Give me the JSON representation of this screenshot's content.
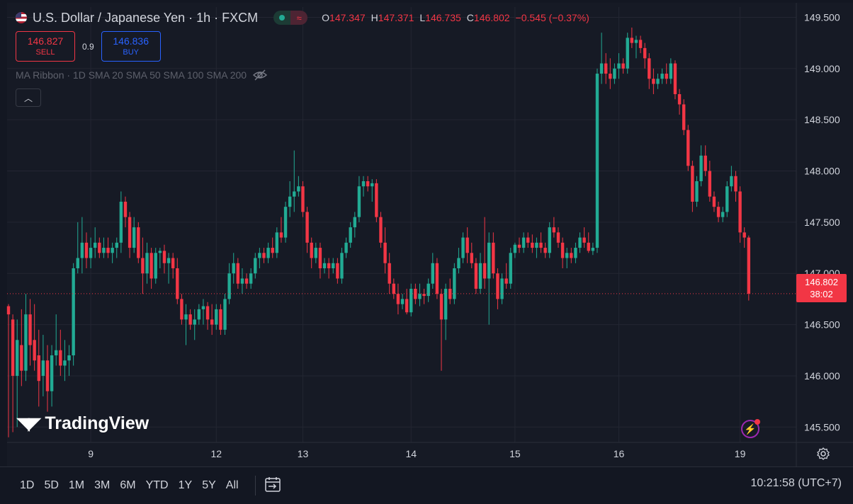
{
  "header": {
    "symbol_title": "U.S. Dollar / Japanese Yen · 1h · FXCM",
    "ohlc": [
      {
        "key": "O",
        "value": "147.347"
      },
      {
        "key": "H",
        "value": "147.371"
      },
      {
        "key": "L",
        "value": "146.735"
      },
      {
        "key": "C",
        "value": "146.802"
      },
      {
        "key": "",
        "value": "−0.545 (−0.37%)"
      }
    ]
  },
  "trade": {
    "sell_price": "146.827",
    "sell_label": "SELL",
    "spread": "0.9",
    "buy_price": "146.836",
    "buy_label": "BUY"
  },
  "indicator": {
    "label": "MA Ribbon · 1D SMA 20 SMA 50 SMA 100 SMA 200"
  },
  "last_price": {
    "price": "146.802",
    "countdown": "38:02"
  },
  "branding": {
    "logo": "TradingView"
  },
  "bottom_bar": {
    "ranges": [
      "1D",
      "5D",
      "1M",
      "3M",
      "6M",
      "YTD",
      "1Y",
      "5Y",
      "All"
    ],
    "clock": "10:21:58 (UTC+7)"
  },
  "colors": {
    "up": "#22ab94",
    "down": "#f23645",
    "background": "#161a25",
    "grid": "#232632",
    "text": "#d1d4dc"
  },
  "chart_data": {
    "type": "candlestick",
    "y_axis": {
      "min": 145.35,
      "max": 149.6,
      "ticks": [
        145.5,
        146.0,
        146.5,
        147.0,
        147.5,
        148.0,
        148.5,
        149.0,
        149.5
      ],
      "tick_labels": [
        "145.500",
        "146.000",
        "146.500",
        "147.000",
        "147.500",
        "148.000",
        "148.500",
        "149.000",
        "149.500"
      ]
    },
    "x_axis": {
      "labels": [
        "9",
        "12",
        "13",
        "14",
        "15",
        "16",
        "19"
      ],
      "label_bar_index": [
        19,
        48,
        68,
        93,
        117,
        141,
        169
      ]
    },
    "grid": true,
    "last_close": 146.802,
    "candles": [
      {
        "o": 146.68,
        "h": 146.7,
        "l": 145.4,
        "c": 146.6
      },
      {
        "o": 146.55,
        "h": 146.6,
        "l": 145.45,
        "c": 146.0
      },
      {
        "o": 146.0,
        "h": 146.55,
        "l": 145.5,
        "c": 146.35
      },
      {
        "o": 146.3,
        "h": 146.65,
        "l": 145.9,
        "c": 146.05
      },
      {
        "o": 146.05,
        "h": 146.8,
        "l": 145.95,
        "c": 146.6
      },
      {
        "o": 146.6,
        "h": 146.75,
        "l": 146.1,
        "c": 146.3
      },
      {
        "o": 146.35,
        "h": 146.7,
        "l": 146.05,
        "c": 146.15
      },
      {
        "o": 146.2,
        "h": 146.45,
        "l": 145.7,
        "c": 145.95
      },
      {
        "o": 146.0,
        "h": 146.4,
        "l": 145.8,
        "c": 146.15
      },
      {
        "o": 146.15,
        "h": 146.3,
        "l": 145.65,
        "c": 145.85
      },
      {
        "o": 145.85,
        "h": 146.3,
        "l": 145.7,
        "c": 146.2
      },
      {
        "o": 146.2,
        "h": 146.6,
        "l": 146.1,
        "c": 146.25
      },
      {
        "o": 146.25,
        "h": 146.45,
        "l": 146.0,
        "c": 146.1
      },
      {
        "o": 146.1,
        "h": 146.35,
        "l": 145.95,
        "c": 146.15
      },
      {
        "o": 146.15,
        "h": 146.3,
        "l": 146.0,
        "c": 146.2
      },
      {
        "o": 146.2,
        "h": 147.1,
        "l": 146.1,
        "c": 147.05
      },
      {
        "o": 147.05,
        "h": 147.5,
        "l": 147.0,
        "c": 147.15
      },
      {
        "o": 147.15,
        "h": 147.55,
        "l": 147.0,
        "c": 147.3
      },
      {
        "o": 147.3,
        "h": 147.4,
        "l": 147.05,
        "c": 147.15
      },
      {
        "o": 147.15,
        "h": 147.35,
        "l": 147.05,
        "c": 147.25
      },
      {
        "o": 147.25,
        "h": 147.45,
        "l": 147.15,
        "c": 147.3
      },
      {
        "o": 147.3,
        "h": 147.35,
        "l": 147.15,
        "c": 147.2
      },
      {
        "o": 147.2,
        "h": 147.35,
        "l": 147.15,
        "c": 147.25
      },
      {
        "o": 147.25,
        "h": 147.35,
        "l": 147.15,
        "c": 147.2
      },
      {
        "o": 147.2,
        "h": 147.3,
        "l": 147.1,
        "c": 147.25
      },
      {
        "o": 147.25,
        "h": 147.35,
        "l": 147.15,
        "c": 147.3
      },
      {
        "o": 147.3,
        "h": 147.8,
        "l": 147.2,
        "c": 147.7
      },
      {
        "o": 147.7,
        "h": 147.75,
        "l": 147.45,
        "c": 147.55
      },
      {
        "o": 147.55,
        "h": 147.6,
        "l": 147.15,
        "c": 147.25
      },
      {
        "o": 147.25,
        "h": 147.55,
        "l": 147.2,
        "c": 147.45
      },
      {
        "o": 147.45,
        "h": 147.5,
        "l": 147.1,
        "c": 147.15
      },
      {
        "o": 147.15,
        "h": 147.35,
        "l": 146.8,
        "c": 147.0
      },
      {
        "o": 147.0,
        "h": 147.3,
        "l": 146.9,
        "c": 147.2
      },
      {
        "o": 147.2,
        "h": 147.25,
        "l": 146.85,
        "c": 146.95
      },
      {
        "o": 146.95,
        "h": 147.25,
        "l": 146.9,
        "c": 147.2
      },
      {
        "o": 147.2,
        "h": 147.25,
        "l": 147.05,
        "c": 147.22
      },
      {
        "o": 147.22,
        "h": 147.28,
        "l": 147.0,
        "c": 147.1
      },
      {
        "o": 147.1,
        "h": 147.2,
        "l": 146.9,
        "c": 147.15
      },
      {
        "o": 147.15,
        "h": 147.2,
        "l": 146.95,
        "c": 147.05
      },
      {
        "o": 147.05,
        "h": 147.15,
        "l": 146.7,
        "c": 146.75
      },
      {
        "o": 146.75,
        "h": 146.8,
        "l": 146.5,
        "c": 146.55
      },
      {
        "o": 146.55,
        "h": 146.7,
        "l": 146.3,
        "c": 146.6
      },
      {
        "o": 146.6,
        "h": 146.65,
        "l": 146.45,
        "c": 146.5
      },
      {
        "o": 146.5,
        "h": 146.65,
        "l": 146.35,
        "c": 146.55
      },
      {
        "o": 146.55,
        "h": 146.7,
        "l": 146.5,
        "c": 146.65
      },
      {
        "o": 146.65,
        "h": 146.75,
        "l": 146.5,
        "c": 146.68
      },
      {
        "o": 146.68,
        "h": 146.72,
        "l": 146.45,
        "c": 146.55
      },
      {
        "o": 146.55,
        "h": 146.7,
        "l": 146.4,
        "c": 146.5
      },
      {
        "o": 146.5,
        "h": 146.7,
        "l": 146.45,
        "c": 146.65
      },
      {
        "o": 146.65,
        "h": 146.7,
        "l": 146.4,
        "c": 146.45
      },
      {
        "o": 146.45,
        "h": 146.8,
        "l": 146.4,
        "c": 146.75
      },
      {
        "o": 146.75,
        "h": 147.1,
        "l": 146.7,
        "c": 147.0
      },
      {
        "o": 147.0,
        "h": 147.2,
        "l": 146.9,
        "c": 147.1
      },
      {
        "o": 147.1,
        "h": 147.15,
        "l": 146.85,
        "c": 146.9
      },
      {
        "o": 146.9,
        "h": 147.05,
        "l": 146.8,
        "c": 146.95
      },
      {
        "o": 146.95,
        "h": 147.0,
        "l": 146.85,
        "c": 146.9
      },
      {
        "o": 146.9,
        "h": 147.05,
        "l": 146.85,
        "c": 147.0
      },
      {
        "o": 147.0,
        "h": 147.2,
        "l": 146.95,
        "c": 147.15
      },
      {
        "o": 147.15,
        "h": 147.25,
        "l": 147.05,
        "c": 147.2
      },
      {
        "o": 147.2,
        "h": 147.25,
        "l": 147.1,
        "c": 147.15
      },
      {
        "o": 147.15,
        "h": 147.3,
        "l": 147.1,
        "c": 147.25
      },
      {
        "o": 147.25,
        "h": 147.35,
        "l": 147.15,
        "c": 147.2
      },
      {
        "o": 147.2,
        "h": 147.45,
        "l": 147.15,
        "c": 147.4
      },
      {
        "o": 147.4,
        "h": 147.55,
        "l": 147.3,
        "c": 147.35
      },
      {
        "o": 147.35,
        "h": 147.7,
        "l": 147.3,
        "c": 147.65
      },
      {
        "o": 147.65,
        "h": 147.9,
        "l": 147.55,
        "c": 147.75
      },
      {
        "o": 147.75,
        "h": 148.2,
        "l": 147.6,
        "c": 147.8
      },
      {
        "o": 147.8,
        "h": 147.95,
        "l": 147.75,
        "c": 147.85
      },
      {
        "o": 147.85,
        "h": 147.9,
        "l": 147.55,
        "c": 147.6
      },
      {
        "o": 147.6,
        "h": 147.65,
        "l": 147.2,
        "c": 147.3
      },
      {
        "o": 147.3,
        "h": 147.35,
        "l": 147.05,
        "c": 147.15
      },
      {
        "o": 147.15,
        "h": 147.3,
        "l": 147.1,
        "c": 147.25
      },
      {
        "o": 147.25,
        "h": 147.3,
        "l": 146.95,
        "c": 147.05
      },
      {
        "o": 147.05,
        "h": 147.15,
        "l": 147.0,
        "c": 147.1
      },
      {
        "o": 147.1,
        "h": 147.15,
        "l": 146.95,
        "c": 147.05
      },
      {
        "o": 147.05,
        "h": 147.15,
        "l": 147.0,
        "c": 147.1
      },
      {
        "o": 147.1,
        "h": 147.15,
        "l": 146.9,
        "c": 146.95
      },
      {
        "o": 146.95,
        "h": 147.25,
        "l": 146.9,
        "c": 147.2
      },
      {
        "o": 147.2,
        "h": 147.35,
        "l": 147.15,
        "c": 147.3
      },
      {
        "o": 147.3,
        "h": 147.5,
        "l": 147.25,
        "c": 147.45
      },
      {
        "o": 147.45,
        "h": 147.6,
        "l": 147.35,
        "c": 147.55
      },
      {
        "o": 147.55,
        "h": 147.95,
        "l": 147.5,
        "c": 147.85
      },
      {
        "o": 147.85,
        "h": 147.95,
        "l": 147.75,
        "c": 147.9
      },
      {
        "o": 147.9,
        "h": 147.95,
        "l": 147.8,
        "c": 147.85
      },
      {
        "o": 147.85,
        "h": 147.92,
        "l": 147.7,
        "c": 147.88
      },
      {
        "o": 147.88,
        "h": 147.92,
        "l": 147.5,
        "c": 147.55
      },
      {
        "o": 147.55,
        "h": 147.6,
        "l": 147.25,
        "c": 147.3
      },
      {
        "o": 147.3,
        "h": 147.45,
        "l": 147.0,
        "c": 147.1
      },
      {
        "o": 147.1,
        "h": 147.2,
        "l": 146.8,
        "c": 146.9
      },
      {
        "o": 146.9,
        "h": 146.95,
        "l": 146.75,
        "c": 146.8
      },
      {
        "o": 146.8,
        "h": 146.9,
        "l": 146.6,
        "c": 146.7
      },
      {
        "o": 146.7,
        "h": 146.8,
        "l": 146.65,
        "c": 146.75
      },
      {
        "o": 146.75,
        "h": 146.85,
        "l": 146.6,
        "c": 146.62
      },
      {
        "o": 146.62,
        "h": 146.9,
        "l": 146.58,
        "c": 146.85
      },
      {
        "o": 146.85,
        "h": 146.9,
        "l": 146.7,
        "c": 146.75
      },
      {
        "o": 146.75,
        "h": 146.9,
        "l": 146.68,
        "c": 146.8
      },
      {
        "o": 146.8,
        "h": 146.85,
        "l": 146.7,
        "c": 146.78
      },
      {
        "o": 146.78,
        "h": 146.95,
        "l": 146.72,
        "c": 146.9
      },
      {
        "o": 146.9,
        "h": 147.2,
        "l": 146.85,
        "c": 147.1
      },
      {
        "o": 147.1,
        "h": 147.15,
        "l": 146.75,
        "c": 146.8
      },
      {
        "o": 146.8,
        "h": 146.85,
        "l": 146.05,
        "c": 146.55
      },
      {
        "o": 146.55,
        "h": 146.9,
        "l": 146.35,
        "c": 146.85
      },
      {
        "o": 146.85,
        "h": 146.95,
        "l": 146.7,
        "c": 146.75
      },
      {
        "o": 146.75,
        "h": 147.1,
        "l": 146.7,
        "c": 147.05
      },
      {
        "o": 147.05,
        "h": 147.25,
        "l": 147.0,
        "c": 147.15
      },
      {
        "o": 147.15,
        "h": 147.4,
        "l": 147.1,
        "c": 147.35
      },
      {
        "o": 147.35,
        "h": 147.45,
        "l": 147.1,
        "c": 147.2
      },
      {
        "o": 147.2,
        "h": 147.3,
        "l": 147.05,
        "c": 147.1
      },
      {
        "o": 147.1,
        "h": 147.15,
        "l": 146.8,
        "c": 146.85
      },
      {
        "o": 146.85,
        "h": 147.2,
        "l": 146.8,
        "c": 147.1
      },
      {
        "o": 147.1,
        "h": 147.55,
        "l": 146.85,
        "c": 146.95
      },
      {
        "o": 146.95,
        "h": 147.4,
        "l": 146.5,
        "c": 147.3
      },
      {
        "o": 147.3,
        "h": 147.4,
        "l": 146.95,
        "c": 147.0
      },
      {
        "o": 147.0,
        "h": 147.05,
        "l": 146.65,
        "c": 146.75
      },
      {
        "o": 146.75,
        "h": 147.0,
        "l": 146.7,
        "c": 146.95
      },
      {
        "o": 146.95,
        "h": 147.1,
        "l": 146.85,
        "c": 146.9
      },
      {
        "o": 146.9,
        "h": 147.25,
        "l": 146.85,
        "c": 147.2
      },
      {
        "o": 147.2,
        "h": 147.3,
        "l": 147.15,
        "c": 147.28
      },
      {
        "o": 147.28,
        "h": 147.35,
        "l": 147.2,
        "c": 147.25
      },
      {
        "o": 147.25,
        "h": 147.4,
        "l": 147.2,
        "c": 147.35
      },
      {
        "o": 147.35,
        "h": 147.4,
        "l": 147.25,
        "c": 147.3
      },
      {
        "o": 147.3,
        "h": 147.38,
        "l": 147.2,
        "c": 147.25
      },
      {
        "o": 147.25,
        "h": 147.35,
        "l": 147.15,
        "c": 147.3
      },
      {
        "o": 147.3,
        "h": 147.4,
        "l": 147.2,
        "c": 147.25
      },
      {
        "o": 147.25,
        "h": 147.3,
        "l": 147.15,
        "c": 147.2
      },
      {
        "o": 147.2,
        "h": 147.5,
        "l": 147.15,
        "c": 147.45
      },
      {
        "o": 147.45,
        "h": 147.55,
        "l": 147.35,
        "c": 147.4
      },
      {
        "o": 147.4,
        "h": 147.45,
        "l": 147.25,
        "c": 147.3
      },
      {
        "o": 147.3,
        "h": 147.35,
        "l": 147.05,
        "c": 147.15
      },
      {
        "o": 147.15,
        "h": 147.25,
        "l": 147.05,
        "c": 147.2
      },
      {
        "o": 147.2,
        "h": 147.25,
        "l": 147.1,
        "c": 147.15
      },
      {
        "o": 147.15,
        "h": 147.3,
        "l": 147.1,
        "c": 147.25
      },
      {
        "o": 147.25,
        "h": 147.4,
        "l": 147.2,
        "c": 147.35
      },
      {
        "o": 147.35,
        "h": 147.45,
        "l": 147.25,
        "c": 147.3
      },
      {
        "o": 147.3,
        "h": 147.4,
        "l": 147.2,
        "c": 147.22
      },
      {
        "o": 147.22,
        "h": 147.3,
        "l": 147.18,
        "c": 147.25
      },
      {
        "o": 147.25,
        "h": 149.0,
        "l": 147.2,
        "c": 148.95
      },
      {
        "o": 148.95,
        "h": 149.35,
        "l": 148.85,
        "c": 149.05
      },
      {
        "o": 149.05,
        "h": 149.15,
        "l": 148.85,
        "c": 148.95
      },
      {
        "o": 148.95,
        "h": 149.1,
        "l": 148.8,
        "c": 148.9
      },
      {
        "o": 148.9,
        "h": 149.05,
        "l": 148.85,
        "c": 149.0
      },
      {
        "o": 149.0,
        "h": 149.15,
        "l": 148.9,
        "c": 149.05
      },
      {
        "o": 149.05,
        "h": 149.1,
        "l": 148.95,
        "c": 149.0
      },
      {
        "o": 149.0,
        "h": 149.35,
        "l": 148.95,
        "c": 149.3
      },
      {
        "o": 149.3,
        "h": 149.4,
        "l": 149.2,
        "c": 149.25
      },
      {
        "o": 149.25,
        "h": 149.32,
        "l": 149.1,
        "c": 149.28
      },
      {
        "o": 149.28,
        "h": 149.32,
        "l": 149.15,
        "c": 149.2
      },
      {
        "o": 149.2,
        "h": 149.25,
        "l": 149.0,
        "c": 149.1
      },
      {
        "o": 149.1,
        "h": 149.15,
        "l": 148.8,
        "c": 148.9
      },
      {
        "o": 148.9,
        "h": 149.0,
        "l": 148.75,
        "c": 148.85
      },
      {
        "o": 148.85,
        "h": 148.95,
        "l": 148.8,
        "c": 148.9
      },
      {
        "o": 148.9,
        "h": 149.0,
        "l": 148.85,
        "c": 148.95
      },
      {
        "o": 148.95,
        "h": 149.05,
        "l": 148.85,
        "c": 148.9
      },
      {
        "o": 148.9,
        "h": 149.1,
        "l": 148.85,
        "c": 149.05
      },
      {
        "o": 149.05,
        "h": 149.08,
        "l": 148.7,
        "c": 148.75
      },
      {
        "o": 148.75,
        "h": 148.8,
        "l": 148.55,
        "c": 148.65
      },
      {
        "o": 148.65,
        "h": 148.7,
        "l": 148.35,
        "c": 148.4
      },
      {
        "o": 148.4,
        "h": 148.45,
        "l": 148.0,
        "c": 148.05
      },
      {
        "o": 148.05,
        "h": 148.1,
        "l": 147.6,
        "c": 147.7
      },
      {
        "o": 147.7,
        "h": 147.95,
        "l": 147.65,
        "c": 147.9
      },
      {
        "o": 147.9,
        "h": 148.25,
        "l": 147.85,
        "c": 148.15
      },
      {
        "o": 148.15,
        "h": 148.25,
        "l": 147.95,
        "c": 148.0
      },
      {
        "o": 148.0,
        "h": 148.1,
        "l": 147.7,
        "c": 147.75
      },
      {
        "o": 147.75,
        "h": 147.8,
        "l": 147.6,
        "c": 147.65
      },
      {
        "o": 147.65,
        "h": 147.7,
        "l": 147.5,
        "c": 147.55
      },
      {
        "o": 147.55,
        "h": 147.65,
        "l": 147.5,
        "c": 147.6
      },
      {
        "o": 147.6,
        "h": 147.9,
        "l": 147.55,
        "c": 147.85
      },
      {
        "o": 147.85,
        "h": 148.05,
        "l": 147.8,
        "c": 147.95
      },
      {
        "o": 147.95,
        "h": 148.0,
        "l": 147.7,
        "c": 147.8
      },
      {
        "o": 147.8,
        "h": 147.85,
        "l": 147.3,
        "c": 147.4
      },
      {
        "o": 147.4,
        "h": 147.45,
        "l": 147.25,
        "c": 147.35
      },
      {
        "o": 147.35,
        "h": 147.37,
        "l": 146.735,
        "c": 146.802
      }
    ]
  }
}
